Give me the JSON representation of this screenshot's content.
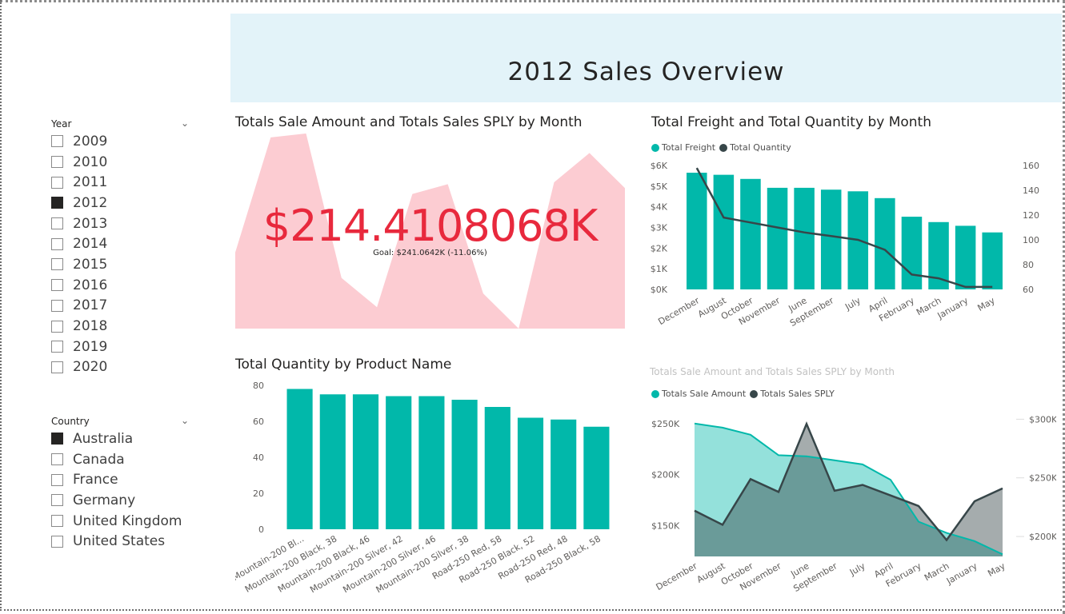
{
  "banner": {
    "title": "2012 Sales Overview"
  },
  "slicers": {
    "year": {
      "header": "Year",
      "items": [
        {
          "label": "2009",
          "checked": false
        },
        {
          "label": "2010",
          "checked": false
        },
        {
          "label": "2011",
          "checked": false
        },
        {
          "label": "2012",
          "checked": true
        },
        {
          "label": "2013",
          "checked": false
        },
        {
          "label": "2014",
          "checked": false
        },
        {
          "label": "2015",
          "checked": false
        },
        {
          "label": "2016",
          "checked": false
        },
        {
          "label": "2017",
          "checked": false
        },
        {
          "label": "2018",
          "checked": false
        },
        {
          "label": "2019",
          "checked": false
        },
        {
          "label": "2020",
          "checked": false
        }
      ]
    },
    "country": {
      "header": "Country",
      "items": [
        {
          "label": "Australia",
          "checked": true
        },
        {
          "label": "Canada",
          "checked": false
        },
        {
          "label": "France",
          "checked": false
        },
        {
          "label": "Germany",
          "checked": false
        },
        {
          "label": "United Kingdom",
          "checked": false
        },
        {
          "label": "United States",
          "checked": false
        }
      ]
    }
  },
  "kpi": {
    "title": "Totals Sale Amount and Totals Sales SPLY by Month",
    "value": "$214.4108068K",
    "alert": "!",
    "goal": "Goal: $241.0642K (-11.06%)"
  },
  "freight_chart": {
    "title": "Total Freight and Total Quantity by Month",
    "legend": [
      "Total Freight",
      "Total Quantity"
    ],
    "y_left_ticks": [
      "$6K",
      "$5K",
      "$4K",
      "$3K",
      "$2K",
      "$1K",
      "$0K"
    ],
    "y_right_ticks": [
      "160",
      "140",
      "120",
      "100",
      "80",
      "60"
    ]
  },
  "quantity_chart": {
    "title": "Total Quantity by Product Name",
    "y_ticks": [
      "80",
      "60",
      "40",
      "20",
      "0"
    ]
  },
  "area_chart": {
    "title": "Totals Sale Amount and Totals Sales SPLY by Month",
    "legend": [
      "Totals Sale Amount",
      "Totals Sales SPLY"
    ],
    "y_left_ticks": [
      "$250K",
      "$200K",
      "$150K"
    ],
    "y_right_ticks": [
      "$300K",
      "$250K",
      "$200K"
    ]
  },
  "colors": {
    "teal": "#01b8aa",
    "dark": "#374649",
    "kpi_red": "#e8293d",
    "kpi_pink": "#fcccd2",
    "banner": "#e3f3f9"
  },
  "chart_data": [
    {
      "type": "area",
      "title": "Totals Sale Amount and Totals Sales SPLY by Month",
      "note": "KPI background trend",
      "values": [
        0.39,
        0.98,
        1.0,
        0.26,
        0.11,
        0.69,
        0.74,
        0.18,
        0.0,
        0.75,
        0.9,
        0.72
      ],
      "ylim": [
        0,
        1
      ]
    },
    {
      "type": "bar",
      "title": "Total Freight and Total Quantity by Month",
      "categories": [
        "December",
        "August",
        "October",
        "November",
        "June",
        "September",
        "July",
        "April",
        "February",
        "March",
        "January",
        "May"
      ],
      "series": [
        {
          "name": "Total Freight",
          "axis": "left",
          "values": [
            5650,
            5550,
            5350,
            4920,
            4920,
            4830,
            4750,
            4420,
            3520,
            3260,
            3080,
            2760
          ]
        },
        {
          "name": "Total Quantity",
          "axis": "right",
          "type": "line",
          "values": [
            158,
            118,
            114,
            110,
            106,
            103,
            100,
            92,
            72,
            69,
            62,
            62
          ]
        }
      ],
      "ylim_left": [
        0,
        6000
      ],
      "ylim_right": [
        60,
        160
      ]
    },
    {
      "type": "bar",
      "title": "Total Quantity by Product Name",
      "categories": [
        "Mountain-200 Bl...",
        "Mountain-200 Black, 38",
        "Mountain-200 Black, 46",
        "Mountain-200 Silver, 42",
        "Mountain-200 Silver, 46",
        "Mountain-200 Silver, 38",
        "Road-250 Red, 58",
        "Road-250 Black, 52",
        "Road-250 Red, 48",
        "Road-250 Black, 58"
      ],
      "values": [
        78,
        75,
        75,
        74,
        74,
        72,
        68,
        62,
        61,
        57
      ],
      "ylim": [
        0,
        80
      ]
    },
    {
      "type": "area",
      "title": "Totals Sale Amount and Totals Sales SPLY by Month",
      "categories": [
        "December",
        "August",
        "October",
        "November",
        "June",
        "September",
        "July",
        "April",
        "February",
        "March",
        "January",
        "May"
      ],
      "series": [
        {
          "name": "Totals Sale Amount",
          "axis": "left",
          "values": [
            250,
            246,
            239,
            219,
            218,
            214,
            210,
            195,
            154,
            143,
            135,
            122
          ]
        },
        {
          "name": "Totals Sales SPLY",
          "axis": "right",
          "values": [
            222,
            210,
            249,
            238,
            296,
            239,
            244,
            235,
            226,
            197,
            230,
            241
          ]
        }
      ],
      "ylim_left": [
        120,
        260
      ],
      "ylim_right": [
        183,
        305
      ]
    }
  ]
}
